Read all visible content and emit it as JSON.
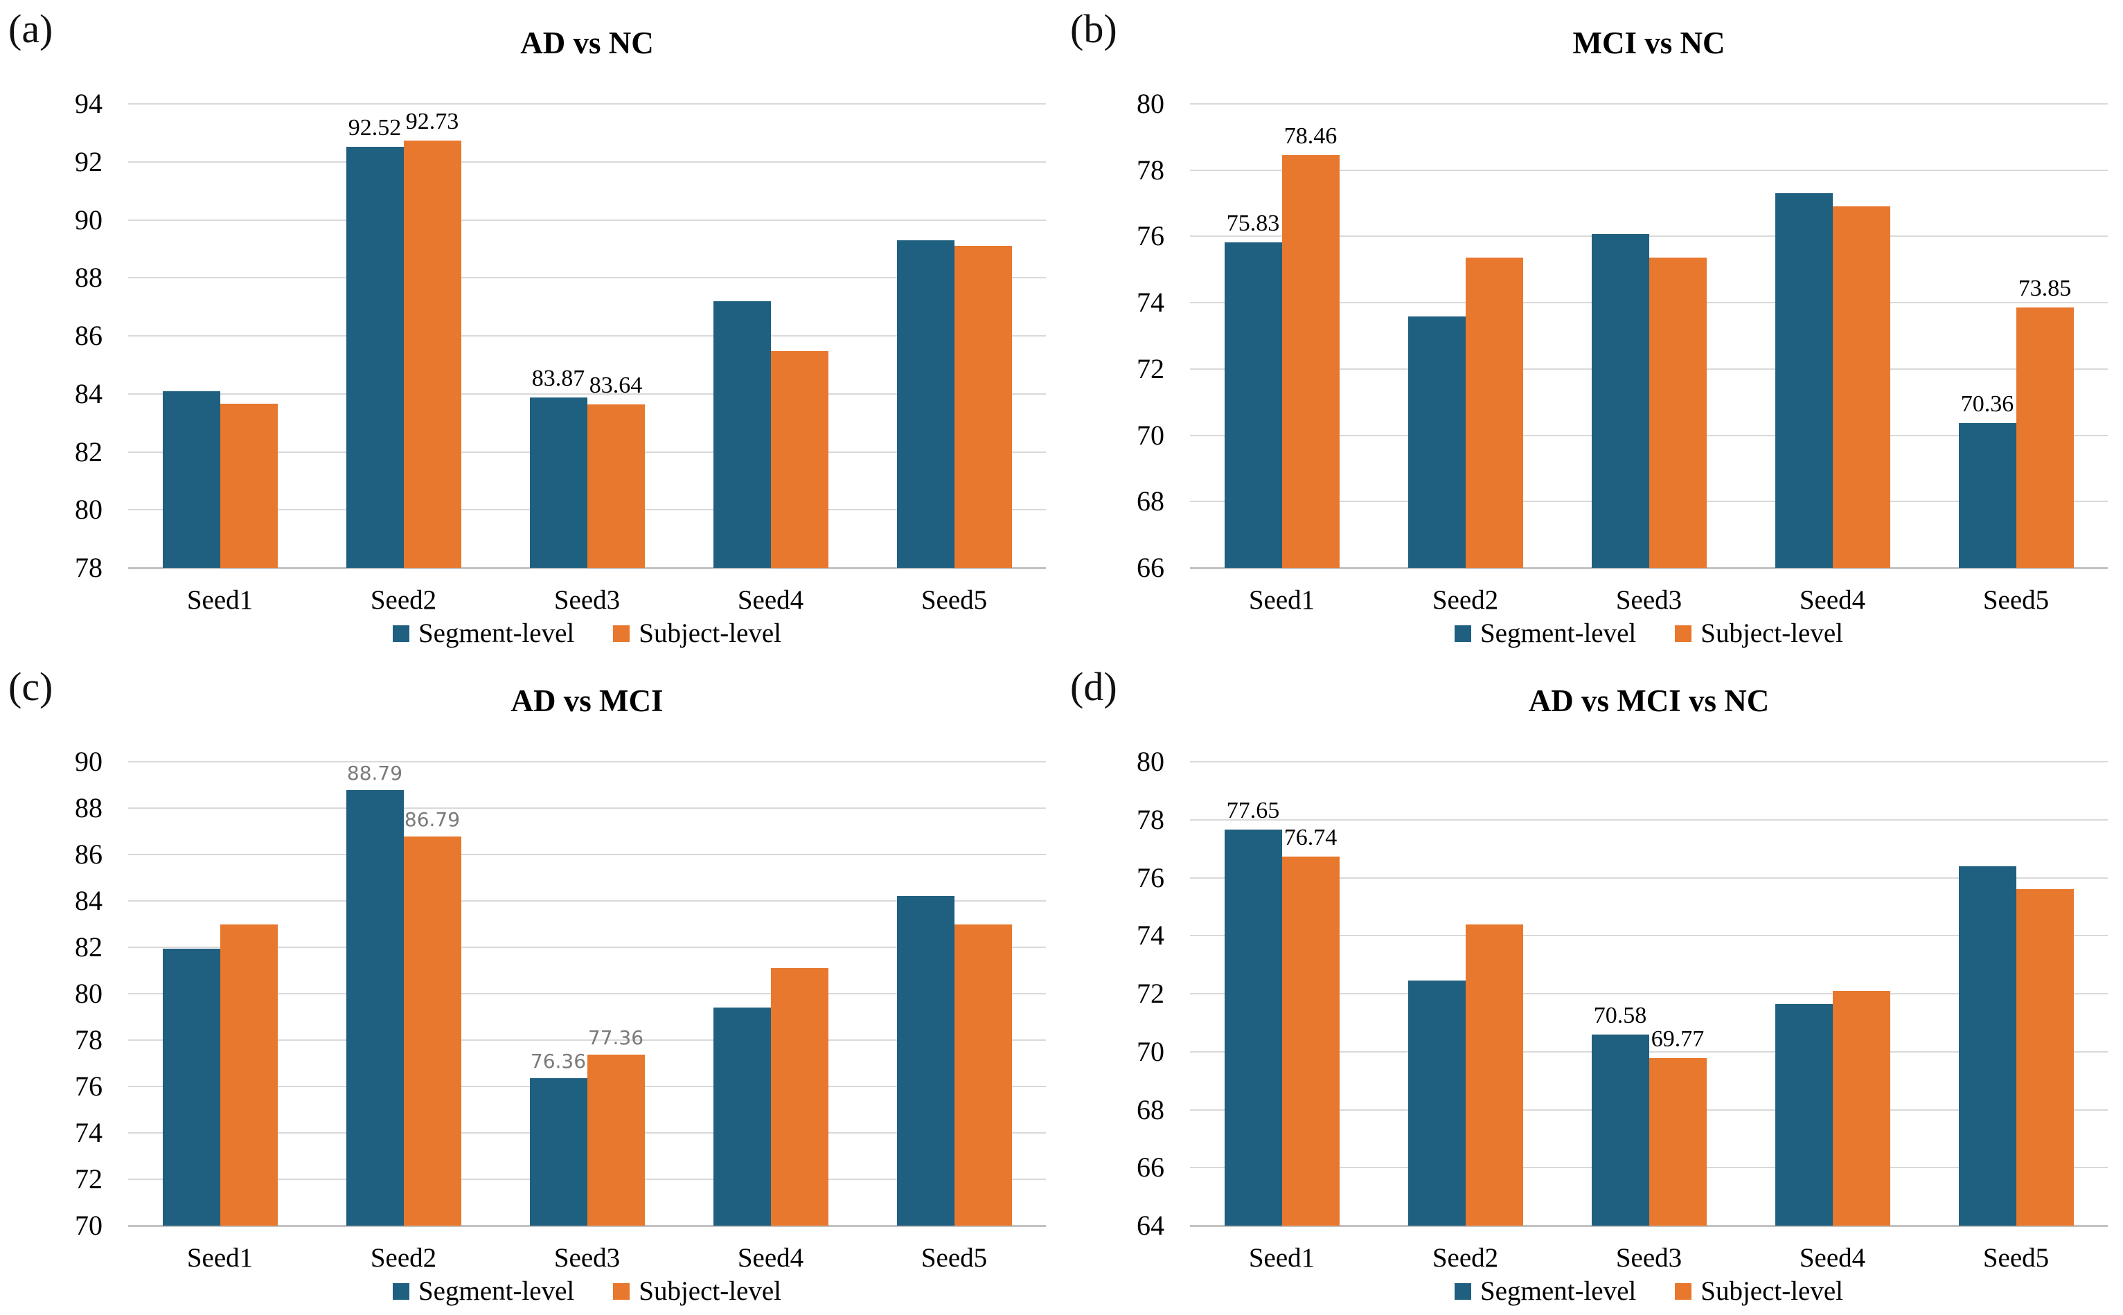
{
  "colors": {
    "segment_blue": "#1f5f80",
    "subject_orange": "#e8782d",
    "gridline": "#d9d9d9",
    "axis_line": "#c2c2c2",
    "tick_text": "#000000",
    "data_label_black": "#000000",
    "data_label_gray": "#7a7a7a"
  },
  "legend": {
    "items": [
      {
        "label": "Segment-level",
        "color": "#1f5f80"
      },
      {
        "label": "Subject-level",
        "color": "#e8782d"
      }
    ]
  },
  "chart_data": [
    {
      "panel_letter": "(a)",
      "type": "bar",
      "title": "AD vs NC",
      "categories": [
        "Seed1",
        "Seed2",
        "Seed3",
        "Seed4",
        "Seed5"
      ],
      "series": [
        {
          "name": "Segment-level",
          "values": [
            84.1,
            92.52,
            83.87,
            87.2,
            89.3
          ]
        },
        {
          "name": "Subject-level",
          "values": [
            83.65,
            92.73,
            83.64,
            85.47,
            89.1
          ]
        }
      ],
      "ylim": [
        78,
        94
      ],
      "ytick_step": 2,
      "grid": true,
      "legend_position": "bottom",
      "label_style": "serif-black",
      "data_labels": [
        {
          "series": 0,
          "index": 1,
          "text": "92.52"
        },
        {
          "series": 1,
          "index": 1,
          "text": "92.73"
        },
        {
          "series": 0,
          "index": 2,
          "text": "83.87"
        },
        {
          "series": 1,
          "index": 2,
          "text": "83.64"
        }
      ]
    },
    {
      "panel_letter": "(b)",
      "type": "bar",
      "title": "MCI vs NC",
      "categories": [
        "Seed1",
        "Seed2",
        "Seed3",
        "Seed4",
        "Seed5"
      ],
      "series": [
        {
          "name": "Segment-level",
          "values": [
            75.83,
            73.58,
            76.08,
            77.3,
            70.36
          ]
        },
        {
          "name": "Subject-level",
          "values": [
            78.46,
            75.37,
            75.37,
            76.9,
            73.85
          ]
        }
      ],
      "ylim": [
        66,
        80
      ],
      "ytick_step": 2,
      "grid": true,
      "legend_position": "bottom",
      "label_style": "serif-black",
      "data_labels": [
        {
          "series": 0,
          "index": 0,
          "text": "75.83"
        },
        {
          "series": 1,
          "index": 0,
          "text": "78.46"
        },
        {
          "series": 0,
          "index": 4,
          "text": "70.36"
        },
        {
          "series": 1,
          "index": 4,
          "text": "73.85"
        }
      ]
    },
    {
      "panel_letter": "(c)",
      "type": "bar",
      "title": "AD vs MCI",
      "categories": [
        "Seed1",
        "Seed2",
        "Seed3",
        "Seed4",
        "Seed5"
      ],
      "series": [
        {
          "name": "Segment-level",
          "values": [
            81.95,
            88.79,
            76.36,
            79.4,
            84.2
          ]
        },
        {
          "name": "Subject-level",
          "values": [
            83.0,
            86.79,
            77.36,
            81.1,
            83.0
          ]
        }
      ],
      "ylim": [
        70,
        90
      ],
      "ytick_step": 2,
      "grid": true,
      "legend_position": "bottom",
      "label_style": "sans-gray",
      "data_labels": [
        {
          "series": 0,
          "index": 1,
          "text": "88.79"
        },
        {
          "series": 1,
          "index": 1,
          "text": "86.79"
        },
        {
          "series": 0,
          "index": 2,
          "text": "76.36"
        },
        {
          "series": 1,
          "index": 2,
          "text": "77.36"
        }
      ]
    },
    {
      "panel_letter": "(d)",
      "type": "bar",
      "title": "AD vs MCI vs NC",
      "categories": [
        "Seed1",
        "Seed2",
        "Seed3",
        "Seed4",
        "Seed5"
      ],
      "series": [
        {
          "name": "Segment-level",
          "values": [
            77.65,
            72.45,
            70.58,
            71.65,
            76.4
          ]
        },
        {
          "name": "Subject-level",
          "values": [
            76.74,
            74.4,
            69.77,
            72.1,
            75.6
          ]
        }
      ],
      "ylim": [
        64,
        80
      ],
      "ytick_step": 2,
      "grid": true,
      "legend_position": "bottom",
      "label_style": "serif-black",
      "data_labels": [
        {
          "series": 0,
          "index": 0,
          "text": "77.65"
        },
        {
          "series": 1,
          "index": 0,
          "text": "76.74"
        },
        {
          "series": 0,
          "index": 2,
          "text": "70.58"
        },
        {
          "series": 1,
          "index": 2,
          "text": "69.77"
        }
      ]
    }
  ]
}
